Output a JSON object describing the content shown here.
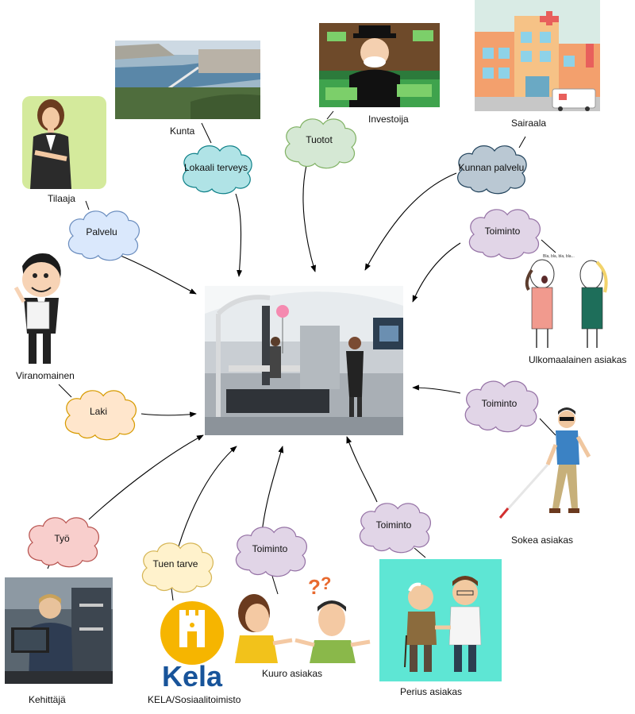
{
  "center": {
    "alt": "rehabilitation gait training lab"
  },
  "actors": {
    "tilaaja": "Tilaaja",
    "kunta": "Kunta",
    "investoija": "Investoija",
    "sairaala": "Sairaala",
    "viranomainen": "Viranomainen",
    "ulkomaalainen": "Ulkomaalainen asiakas",
    "sokea": "Sokea asiakas",
    "kehittaja": "Kehittäjä",
    "kela": "KELA/Sosiaalitoimisto",
    "kuuro": "Kuuro asiakas",
    "perus": "Perius asiakas"
  },
  "clouds": {
    "lokaali": "Lokaali terveys",
    "tuotot": "Tuotot",
    "kunnan": "Kunnan palvelu",
    "palvelu": "Palvelu",
    "toiminto_ulko": "Toiminto",
    "laki": "Laki",
    "toiminto_sokea": "Toiminto",
    "tyo": "Työ",
    "tuen": "Tuen tarve",
    "toiminto_kuuro": "Toiminto",
    "toiminto_perus": "Toiminto"
  },
  "logos": {
    "kela_wordmark": "Kela"
  },
  "speech": {
    "bubble_text": "Bla, bla, bla, bla..."
  },
  "colors": {
    "blue_cloud_fill": "#dae8fc",
    "blue_cloud_stroke": "#6c8ebf",
    "teal_cloud_fill": "#b0e3e6",
    "teal_cloud_stroke": "#0e8088",
    "green_cloud_fill": "#d5e8d4",
    "green_cloud_stroke": "#82b366",
    "gray_cloud_fill": "#bac8d3",
    "gray_cloud_stroke": "#23445d",
    "purple_cloud_fill": "#e1d5e7",
    "purple_cloud_stroke": "#9673a6",
    "orange_cloud_fill": "#ffe6cc",
    "orange_cloud_stroke": "#d79b00",
    "red_cloud_fill": "#f8cecc",
    "red_cloud_stroke": "#b85450",
    "yellow_cloud_fill": "#fff2cc",
    "yellow_cloud_stroke": "#d6b656",
    "kela_yellow": "#f6b500",
    "kela_blue": "#18549a"
  }
}
